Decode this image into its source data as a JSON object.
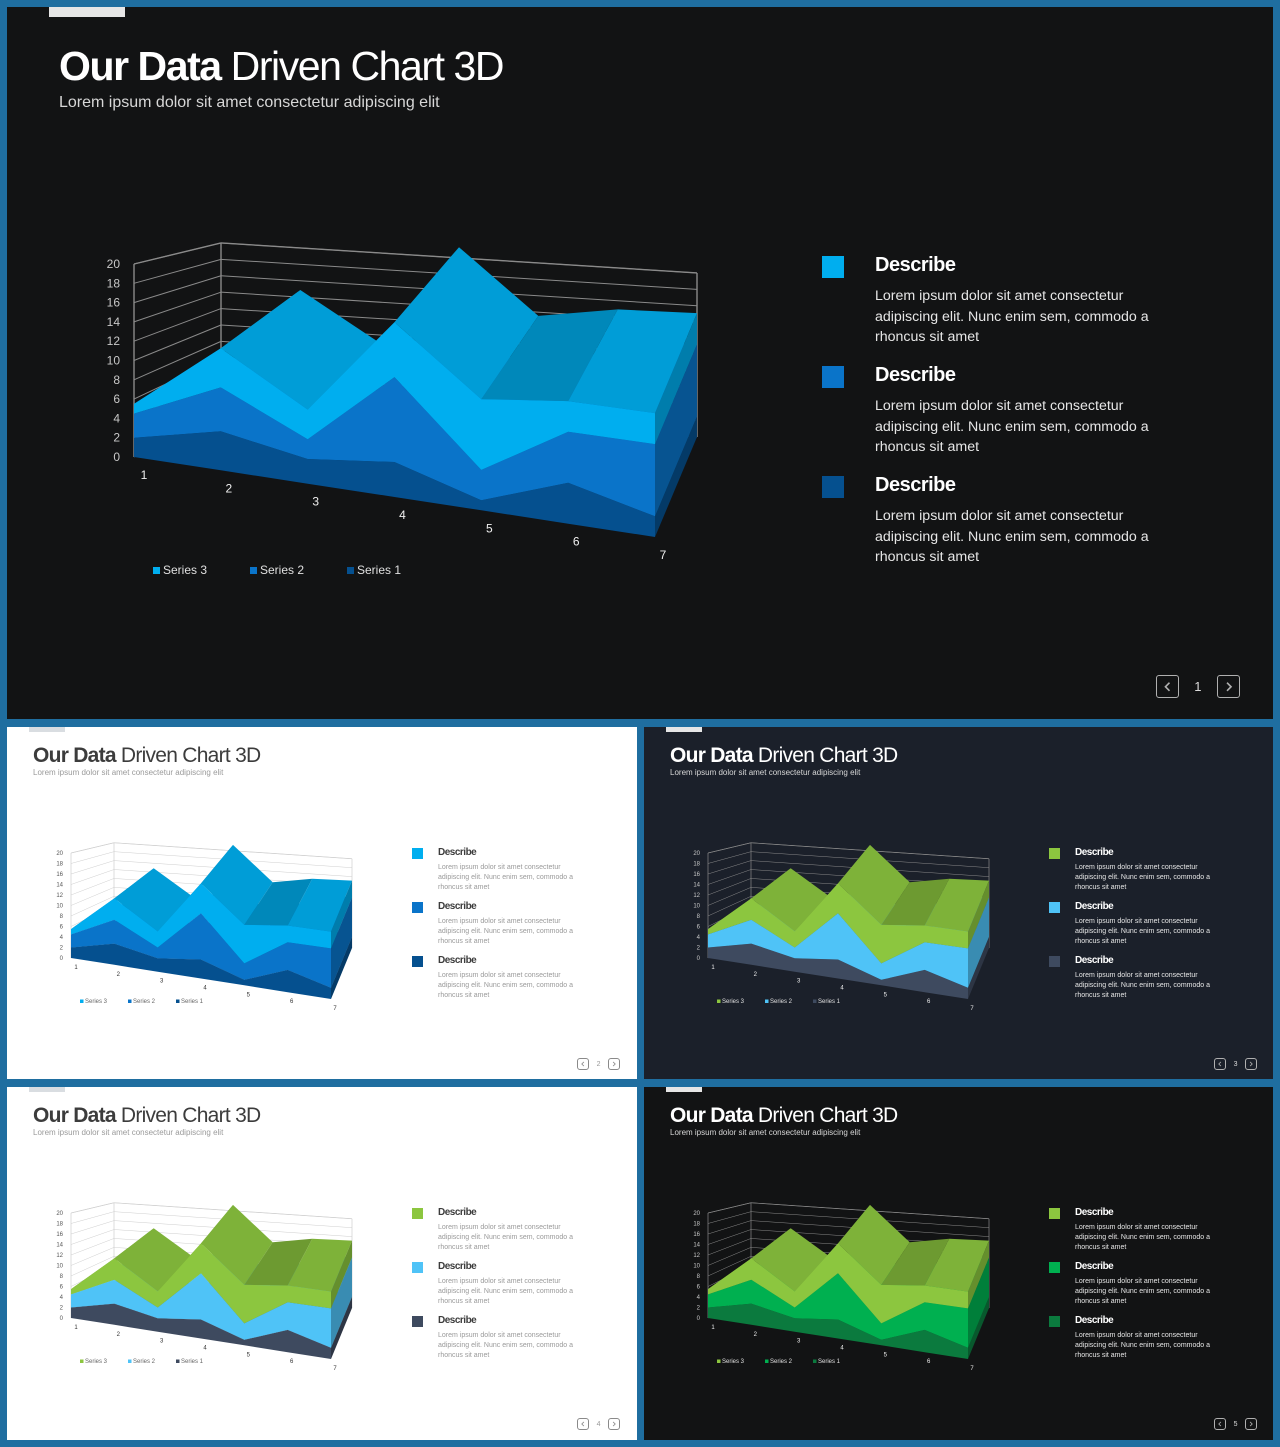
{
  "slides": [
    {
      "theme": "dark",
      "bg": "#121314",
      "title_bold": "Our Data",
      "title_rest": "Driven Chart 3D",
      "subtitle": "Lorem ipsum dolor sit amet consectetur adipiscing elit",
      "colors": {
        "series3": "#00aeef",
        "series2": "#0a74c9",
        "series1": "#05508f"
      },
      "describes": [
        {
          "heading": "Describe",
          "text": "Lorem ipsum dolor sit amet consectetur adipiscing elit. Nunc enim sem, commodo a rhoncus sit amet"
        },
        {
          "heading": "Describe",
          "text": "Lorem ipsum dolor sit amet consectetur adipiscing elit. Nunc enim sem, commodo a rhoncus sit amet"
        },
        {
          "heading": "Describe",
          "text": "Lorem ipsum dolor sit amet consectetur adipiscing elit. Nunc enim sem, commodo a rhoncus sit amet"
        }
      ],
      "page_number": "1",
      "prev_icon": "chevron-left-icon",
      "next_icon": "chevron-right-icon"
    },
    {
      "theme": "light",
      "bg": "#ffffff",
      "title_bold": "Our Data",
      "title_rest": "Driven Chart 3D",
      "subtitle": "Lorem ipsum dolor sit amet consectetur adipiscing elit",
      "colors": {
        "series3": "#00aeef",
        "series2": "#0a74c9",
        "series1": "#05508f"
      },
      "describes": [
        {
          "heading": "Describe",
          "text": "Lorem ipsum dolor sit amet consectetur adipiscing elit. Nunc enim sem, commodo a rhoncus sit amet"
        },
        {
          "heading": "Describe",
          "text": "Lorem ipsum dolor sit amet consectetur adipiscing elit. Nunc enim sem, commodo a rhoncus sit amet"
        },
        {
          "heading": "Describe",
          "text": "Lorem ipsum dolor sit amet consectetur adipiscing elit. Nunc enim sem, commodo a rhoncus sit amet"
        }
      ],
      "page_number": "2",
      "prev_icon": "chevron-left-icon",
      "next_icon": "chevron-right-icon"
    },
    {
      "theme": "navy",
      "bg": "#1b202a",
      "title_bold": "Our Data",
      "title_rest": "Driven Chart 3D",
      "subtitle": "Lorem ipsum dolor sit amet consectetur adipiscing elit",
      "colors": {
        "series3": "#8cc63f",
        "series2": "#4fc3f7",
        "series1": "#3e4a5f"
      },
      "describes": [
        {
          "heading": "Describe",
          "text": "Lorem ipsum dolor sit amet consectetur adipiscing elit. Nunc enim sem, commodo a rhoncus sit amet"
        },
        {
          "heading": "Describe",
          "text": "Lorem ipsum dolor sit amet consectetur adipiscing elit. Nunc enim sem, commodo a rhoncus sit amet"
        },
        {
          "heading": "Describe",
          "text": "Lorem ipsum dolor sit amet consectetur adipiscing elit. Nunc enim sem, commodo a rhoncus sit amet"
        }
      ],
      "page_number": "3",
      "prev_icon": "chevron-left-icon",
      "next_icon": "chevron-right-icon"
    },
    {
      "theme": "light",
      "bg": "#ffffff",
      "title_bold": "Our Data",
      "title_rest": "Driven Chart 3D",
      "subtitle": "Lorem ipsum dolor sit amet consectetur adipiscing elit",
      "colors": {
        "series3": "#8cc63f",
        "series2": "#4fc3f7",
        "series1": "#3e4a5f"
      },
      "describes": [
        {
          "heading": "Describe",
          "text": "Lorem ipsum dolor sit amet consectetur adipiscing elit. Nunc enim sem, commodo a rhoncus sit amet"
        },
        {
          "heading": "Describe",
          "text": "Lorem ipsum dolor sit amet consectetur adipiscing elit. Nunc enim sem, commodo a rhoncus sit amet"
        },
        {
          "heading": "Describe",
          "text": "Lorem ipsum dolor sit amet consectetur adipiscing elit. Nunc enim sem, commodo a rhoncus sit amet"
        }
      ],
      "page_number": "4",
      "prev_icon": "chevron-left-icon",
      "next_icon": "chevron-right-icon"
    },
    {
      "theme": "dark",
      "bg": "#121314",
      "title_bold": "Our Data",
      "title_rest": "Driven Chart 3D",
      "subtitle": "Lorem ipsum dolor sit amet consectetur adipiscing elit",
      "colors": {
        "series3": "#8cc63f",
        "series2": "#00b050",
        "series1": "#0b7a3e"
      },
      "describes": [
        {
          "heading": "Describe",
          "text": "Lorem ipsum dolor sit amet consectetur adipiscing elit. Nunc enim sem, commodo a rhoncus sit amet"
        },
        {
          "heading": "Describe",
          "text": "Lorem ipsum dolor sit amet consectetur adipiscing elit. Nunc enim sem, commodo a rhoncus sit amet"
        },
        {
          "heading": "Describe",
          "text": "Lorem ipsum dolor sit amet consectetur adipiscing elit. Nunc enim sem, commodo a rhoncus sit amet"
        }
      ],
      "page_number": "5",
      "prev_icon": "chevron-left-icon",
      "next_icon": "chevron-right-icon"
    }
  ],
  "chart_data": {
    "type": "area",
    "stacked": true,
    "three_d": true,
    "categories": [
      "1",
      "2",
      "3",
      "4",
      "5",
      "6",
      "7"
    ],
    "series": [
      {
        "name": "Series 1",
        "values": [
          2,
          4,
          2.5,
          3.5,
          1,
          4,
          2
        ]
      },
      {
        "name": "Series 2",
        "values": [
          2.5,
          4.5,
          2,
          8.5,
          3,
          5,
          7
        ]
      },
      {
        "name": "Series 3",
        "values": [
          1,
          4,
          3,
          5.5,
          7,
          3,
          3
        ]
      }
    ],
    "legend_order": [
      "Series 3",
      "Series 2",
      "Series 1"
    ],
    "y_ticks": [
      "0",
      "2",
      "4",
      "6",
      "8",
      "10",
      "12",
      "14",
      "16",
      "18",
      "20"
    ],
    "ylim": [
      0,
      20
    ],
    "grid": true,
    "legend_position": "bottom"
  }
}
